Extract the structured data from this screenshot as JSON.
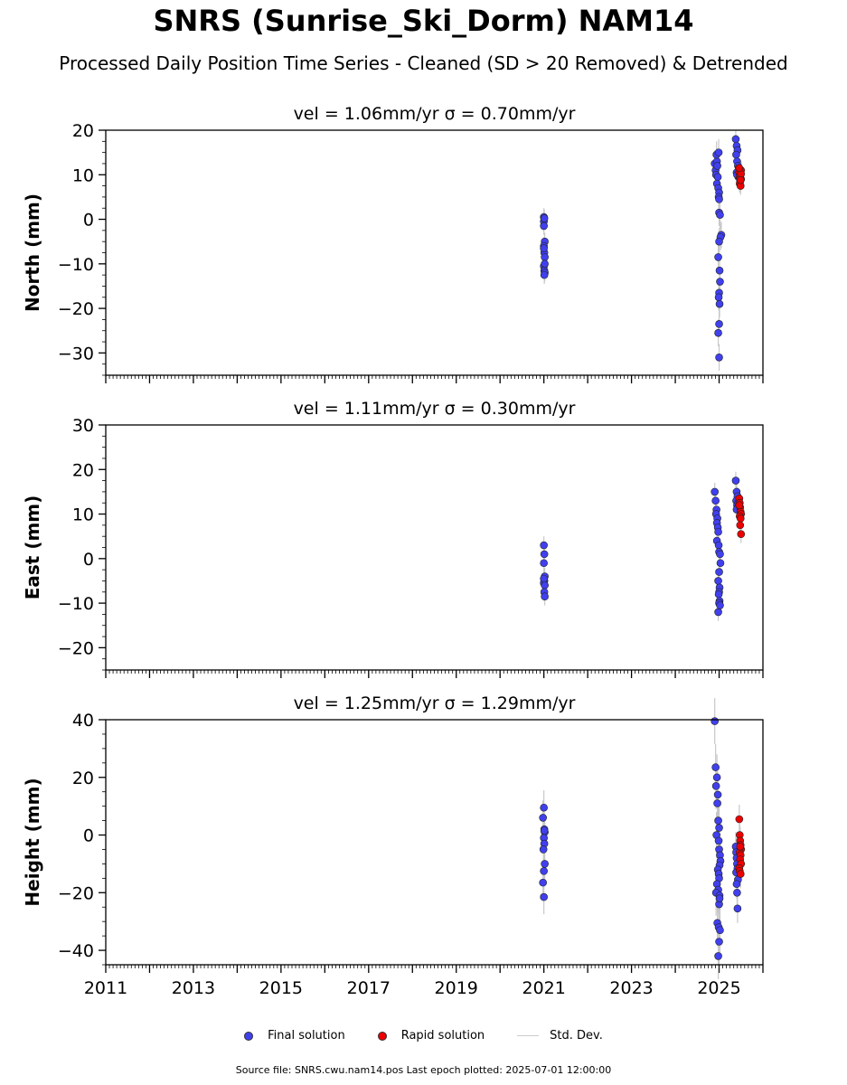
{
  "header": {
    "title": "SNRS (Sunrise_Ski_Dorm) NAM14",
    "subtitle": "Processed Daily Position Time Series - Cleaned (SD > 20 Removed) & Detrended"
  },
  "legend": {
    "final_label": "Final solution",
    "rapid_label": "Rapid solution",
    "std_label": "Std. Dev.",
    "final_color": "#4040ee",
    "rapid_color": "#ee0000",
    "std_color": "#cccccc"
  },
  "footer": {
    "text": "Source file: SNRS.cwu.nam14.pos  Last epoch plotted: 2025-07-01 12:00:00"
  },
  "chart_data": [
    {
      "type": "scatter",
      "title": "vel = 1.06mm/yr   σ = 0.70mm/yr",
      "ylabel": "North (mm)",
      "xlim": [
        2011,
        2026
      ],
      "ylim": [
        -35,
        20
      ],
      "yticks": [
        -30,
        -20,
        -10,
        0,
        10,
        20
      ],
      "xticks": [
        2011,
        2013,
        2015,
        2017,
        2019,
        2021,
        2023,
        2025
      ],
      "grid": false,
      "series": [
        {
          "name": "Final solution",
          "color": "#4040ee",
          "x": [
            2021.0,
            2021.0,
            2021.01,
            2021.0,
            2021.02,
            2021.0,
            2021.01,
            2021.02,
            2021.0,
            2021.01,
            2021.02,
            2021.01,
            2021.0,
            2021.02,
            2024.9,
            2024.92,
            2024.95,
            2024.93,
            2024.97,
            2024.95,
            2024.98,
            2025.0,
            2024.96,
            2024.99,
            2024.94,
            2025.0,
            2025.02,
            2025.05,
            2025.03,
            2025.0,
            2024.98,
            2025.01,
            2025.02,
            2025.0,
            2024.99,
            2025.01,
            2025.0,
            2024.98,
            2025.0,
            2024.99,
            2025.0,
            2025.38,
            2025.4,
            2025.42,
            2025.39,
            2025.41,
            2025.43,
            2025.45,
            2025.4,
            2025.44,
            2025.41
          ],
          "y": [
            0.5,
            -0.5,
            0.2,
            -1.5,
            -5.0,
            -6.0,
            -7.5,
            -8.5,
            -10.5,
            -11.5,
            -12.0,
            -12.5,
            -6.5,
            -10.0,
            12.5,
            11.0,
            13.0,
            10.0,
            9.5,
            8.0,
            7.0,
            6.0,
            12.0,
            5.0,
            14.5,
            1.5,
            1.0,
            -3.5,
            -4.0,
            -5.0,
            -8.5,
            -11.5,
            -14.0,
            -16.5,
            -17.5,
            -19.0,
            -23.5,
            -25.5,
            -31.0,
            15.0,
            4.5,
            18.0,
            16.5,
            15.5,
            14.5,
            13.0,
            12.0,
            11.5,
            10.5,
            9.5,
            10.0
          ],
          "err": [
            2,
            2,
            2,
            2,
            2,
            2,
            2,
            2,
            2,
            2,
            2,
            2,
            2,
            2,
            3,
            3,
            3,
            3,
            3,
            3,
            3,
            3,
            3,
            3,
            3,
            3,
            3,
            3,
            3,
            3,
            3,
            3,
            3,
            3,
            3,
            3,
            3,
            3,
            3,
            3,
            3,
            2,
            2,
            2,
            2,
            2,
            2,
            2,
            2,
            2,
            2
          ]
        },
        {
          "name": "Rapid solution",
          "color": "#ee0000",
          "x": [
            2025.46,
            2025.47,
            2025.48,
            2025.49,
            2025.5,
            2025.5,
            2025.47,
            2025.49,
            2025.48,
            2025.5,
            2025.46,
            2025.49
          ],
          "y": [
            10.5,
            9.5,
            8.5,
            10.0,
            9.0,
            11.0,
            8.0,
            7.5,
            9.8,
            10.2,
            11.5,
            8.8
          ],
          "err": [
            2,
            2,
            2,
            2,
            2,
            2,
            2,
            2,
            2,
            2,
            2,
            2
          ]
        }
      ]
    },
    {
      "type": "scatter",
      "title": "vel = 1.11mm/yr   σ = 0.30mm/yr",
      "ylabel": "East (mm)",
      "xlim": [
        2011,
        2026
      ],
      "ylim": [
        -25,
        30
      ],
      "yticks": [
        -20,
        -10,
        0,
        10,
        20,
        30
      ],
      "xticks": [
        2011,
        2013,
        2015,
        2017,
        2019,
        2021,
        2023,
        2025
      ],
      "grid": false,
      "series": [
        {
          "name": "Final solution",
          "color": "#4040ee",
          "x": [
            2021.0,
            2021.01,
            2021.0,
            2021.02,
            2021.01,
            2021.0,
            2021.02,
            2021.01,
            2021.02,
            2021.0,
            2024.9,
            2024.92,
            2024.94,
            2024.93,
            2024.96,
            2024.95,
            2024.97,
            2024.98,
            2024.95,
            2024.99,
            2025.0,
            2025.02,
            2025.03,
            2025.0,
            2024.98,
            2025.01,
            2025.0,
            2024.99,
            2025.01,
            2025.0,
            2024.98,
            2025.02,
            2025.38,
            2025.4,
            2025.42,
            2025.39,
            2025.41,
            2025.43,
            2025.4,
            2025.44
          ],
          "y": [
            3.0,
            1.0,
            -1.0,
            -4.0,
            -5.0,
            -5.5,
            -6.0,
            -7.5,
            -8.5,
            -4.5,
            15.0,
            13.0,
            11.0,
            10.0,
            9.0,
            8.0,
            7.0,
            6.0,
            4.0,
            3.0,
            1.5,
            1.0,
            -1.0,
            -3.0,
            -5.0,
            -6.5,
            -7.5,
            -8.0,
            -9.5,
            -10.0,
            -12.0,
            -10.5,
            17.5,
            15.0,
            14.0,
            13.0,
            12.0,
            11.5,
            11.0,
            12.5
          ],
          "err": [
            2,
            2,
            2,
            2,
            2,
            2,
            2,
            2,
            2,
            2,
            2,
            2,
            2,
            2,
            2,
            2,
            2,
            2,
            2,
            2,
            2,
            2,
            2,
            2,
            2,
            2,
            2,
            2,
            2,
            2,
            2,
            2,
            2,
            2,
            2,
            2,
            2,
            2,
            2,
            2
          ]
        },
        {
          "name": "Rapid solution",
          "color": "#ee0000",
          "x": [
            2025.46,
            2025.47,
            2025.48,
            2025.49,
            2025.5,
            2025.47,
            2025.49,
            2025.48,
            2025.5,
            2025.46
          ],
          "y": [
            13.5,
            12.5,
            11.5,
            10.5,
            10.0,
            9.5,
            9.0,
            7.5,
            5.5,
            12.0
          ],
          "err": [
            2,
            2,
            2,
            2,
            2,
            2,
            2,
            2,
            2,
            2
          ]
        }
      ]
    },
    {
      "type": "scatter",
      "title": "vel = 1.25mm/yr   σ = 1.29mm/yr",
      "ylabel": "Height (mm)",
      "xlim": [
        2011,
        2026
      ],
      "ylim": [
        -45,
        40
      ],
      "yticks": [
        -40,
        -20,
        0,
        20,
        40
      ],
      "xticks": [
        2011,
        2013,
        2015,
        2017,
        2019,
        2021,
        2023,
        2025
      ],
      "xticklabels": [
        "2011",
        "2013",
        "2015",
        "2017",
        "2019",
        "2021",
        "2023",
        "2025"
      ],
      "grid": false,
      "series": [
        {
          "name": "Final solution",
          "color": "#4040ee",
          "x": [
            2021.0,
            2020.98,
            2021.01,
            2021.02,
            2021.0,
            2021.01,
            2020.99,
            2021.02,
            2021.0,
            2020.98,
            2021.0,
            2021.01,
            2024.9,
            2024.92,
            2024.95,
            2024.93,
            2024.97,
            2024.96,
            2024.98,
            2025.0,
            2024.94,
            2024.99,
            2025.0,
            2025.02,
            2025.03,
            2025.01,
            2024.97,
            2024.99,
            2025.0,
            2024.95,
            2024.98,
            2024.93,
            2025.01,
            2025.0,
            2024.96,
            2024.99,
            2025.02,
            2025.0,
            2024.98,
            2025.01,
            2025.38,
            2025.39,
            2025.4,
            2025.41,
            2025.42,
            2025.39,
            2025.43,
            2025.4,
            2025.41,
            2025.42
          ],
          "y": [
            9.5,
            6.0,
            2.0,
            1.0,
            -1.0,
            -3.0,
            -5.0,
            -10.0,
            -12.5,
            -16.5,
            -21.5,
            1.5,
            39.5,
            23.5,
            20.0,
            17.0,
            14.0,
            11.0,
            5.0,
            2.5,
            0.0,
            -2.0,
            -5.0,
            -7.0,
            -9.0,
            -10.5,
            -12.0,
            -13.5,
            -15.0,
            -17.0,
            -19.0,
            -20.0,
            -21.0,
            -24.0,
            -30.5,
            -32.0,
            -33.0,
            -37.0,
            -42.0,
            -22.0,
            -4.0,
            -6.0,
            -8.0,
            -10.0,
            -11.5,
            -13.0,
            -15.5,
            -17.0,
            -20.0,
            -25.5
          ],
          "err": [
            6,
            6,
            6,
            6,
            6,
            6,
            6,
            6,
            6,
            6,
            6,
            6,
            8,
            8,
            8,
            8,
            8,
            8,
            8,
            8,
            8,
            8,
            8,
            8,
            8,
            8,
            8,
            8,
            8,
            8,
            8,
            8,
            8,
            8,
            8,
            8,
            8,
            8,
            8,
            8,
            5,
            5,
            5,
            5,
            5,
            5,
            5,
            5,
            5,
            5
          ]
        },
        {
          "name": "Rapid solution",
          "color": "#ee0000",
          "x": [
            2025.46,
            2025.47,
            2025.48,
            2025.49,
            2025.5,
            2025.47,
            2025.49,
            2025.48,
            2025.5,
            2025.46,
            2025.47,
            2025.49,
            2025.48
          ],
          "y": [
            5.5,
            0.0,
            -2.0,
            -3.5,
            -5.0,
            -6.0,
            -7.0,
            -8.5,
            -10.0,
            -11.5,
            -12.5,
            -13.5,
            -4.0
          ],
          "err": [
            5,
            5,
            5,
            5,
            5,
            5,
            5,
            5,
            5,
            5,
            5,
            5,
            5
          ]
        }
      ]
    }
  ]
}
